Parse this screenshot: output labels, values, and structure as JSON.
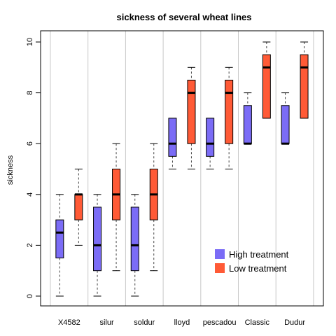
{
  "chart_data": {
    "type": "boxplot",
    "title": "sickness of several wheat lines",
    "xlabel": "",
    "ylabel": "sickness",
    "ylim": [
      0,
      10
    ],
    "yticks": [
      0,
      2,
      4,
      6,
      8,
      10
    ],
    "grid": "vertical separators between groups",
    "legend_position": "bottom-right",
    "categories": [
      "X4582",
      "silur",
      "soldur",
      "lloyd",
      "pescadou",
      "Classic",
      "Dudur"
    ],
    "series": [
      {
        "name": "High treatment",
        "color": "#7b6cf6",
        "boxes": [
          {
            "min": 0,
            "q1": 1.5,
            "median": 2.5,
            "q3": 3.0,
            "max": 4
          },
          {
            "min": 0,
            "q1": 1.0,
            "median": 2.0,
            "q3": 3.5,
            "max": 4
          },
          {
            "min": 0,
            "q1": 1.0,
            "median": 2.0,
            "q3": 3.5,
            "max": 4
          },
          {
            "min": 5,
            "q1": 5.5,
            "median": 6.0,
            "q3": 7.0,
            "max": 7
          },
          {
            "min": 5,
            "q1": 5.5,
            "median": 6.0,
            "q3": 7.0,
            "max": 7
          },
          {
            "min": 6,
            "q1": 6.0,
            "median": 6.0,
            "q3": 7.5,
            "max": 8
          },
          {
            "min": 6,
            "q1": 6.0,
            "median": 6.0,
            "q3": 7.5,
            "max": 8
          }
        ]
      },
      {
        "name": "Low treatment",
        "color": "#ff5a36",
        "boxes": [
          {
            "min": 2,
            "q1": 3.0,
            "median": 4.0,
            "q3": 4.0,
            "max": 5
          },
          {
            "min": 1,
            "q1": 3.0,
            "median": 4.0,
            "q3": 5.0,
            "max": 6
          },
          {
            "min": 1,
            "q1": 3.0,
            "median": 4.0,
            "q3": 5.0,
            "max": 6
          },
          {
            "min": 5,
            "q1": 6.0,
            "median": 8.0,
            "q3": 8.5,
            "max": 9
          },
          {
            "min": 5,
            "q1": 6.0,
            "median": 8.0,
            "q3": 8.5,
            "max": 9
          },
          {
            "min": 7,
            "q1": 7.0,
            "median": 9.0,
            "q3": 9.5,
            "max": 10
          },
          {
            "min": 7,
            "q1": 7.0,
            "median": 9.0,
            "q3": 9.5,
            "max": 10
          }
        ]
      }
    ],
    "legend": [
      "High treatment",
      "Low treatment"
    ]
  }
}
